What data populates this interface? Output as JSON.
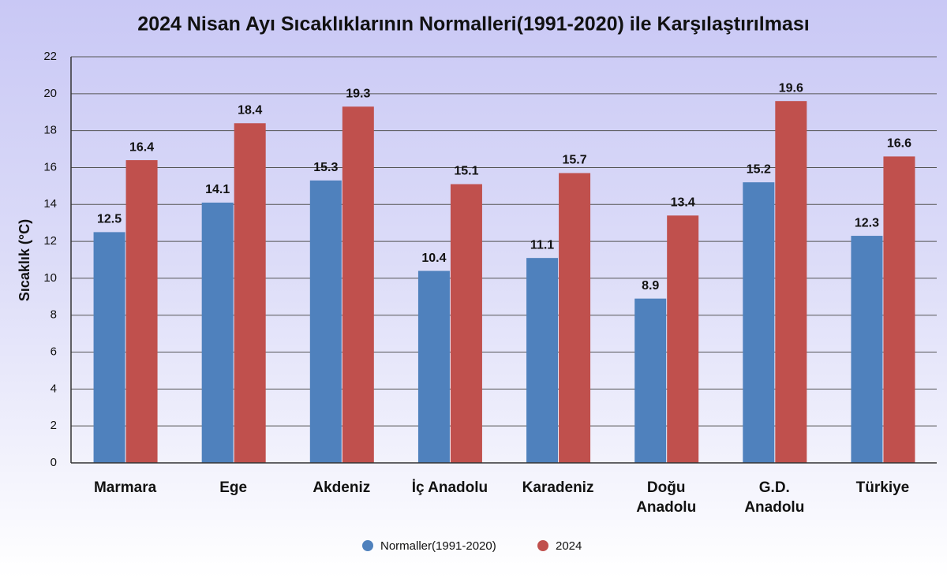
{
  "chart_data": {
    "type": "bar",
    "title": "2024 Nisan Ayı Sıcaklıklarının Normalleri(1991-2020) ile Karşılaştırılması",
    "y_label": "Sıcaklık (°C)",
    "categories": [
      "Marmara",
      "Ege",
      "Akdeniz",
      "İç Anadolu",
      "Karadeniz",
      "Doğu\nAnadolu",
      "G.D.\nAnadolu",
      "Türkiye"
    ],
    "series": [
      {
        "name": "Normaller(1991-2020)",
        "color": "#4f81bd",
        "values": [
          12.5,
          14.1,
          15.3,
          10.4,
          11.1,
          8.9,
          15.2,
          12.3
        ]
      },
      {
        "name": "2024",
        "color": "#c0504d",
        "values": [
          16.4,
          18.4,
          19.3,
          15.1,
          15.7,
          13.4,
          19.6,
          16.6
        ]
      }
    ],
    "ylim": [
      0,
      22
    ],
    "yticks": [
      0,
      2,
      4,
      6,
      8,
      10,
      12,
      14,
      16,
      18,
      20,
      22
    ],
    "grid": true,
    "legend": "bottom"
  }
}
